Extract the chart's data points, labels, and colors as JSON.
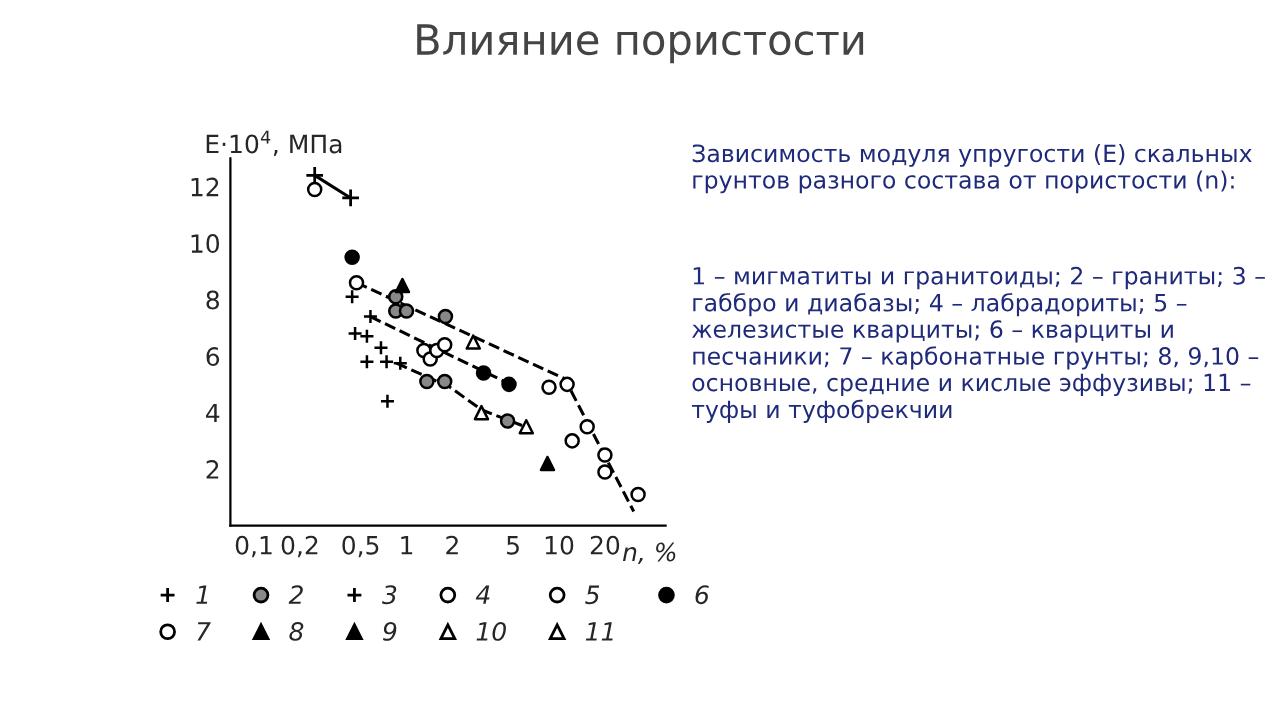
{
  "chart_data": {
    "type": "scatter",
    "title": "Влияние пористости",
    "xlabel": "n, %",
    "ylabel": "E·10$^{4}$, МПа",
    "annotations": [
      "Зависимость модуля упругости (E) скальных грунтов разного состава от пористости (n):",
      "1 – мигматиты и гранитоиды; 2 – граниты; 3 – габбро и диабазы; 4 – лабрадориты; 5 – железистые кварциты; 6 – кварциты и песчаники; 7 – карбонатные грунты; 8, 9,10 – основные, средние и кислые эффузивы; 11 – туфы и туфобрекчии"
    ],
    "log": "x",
    "xlim": [
      0.07,
      50
    ],
    "ylim": [
      0,
      13
    ],
    "xticks": [
      {
        "value": 0.1,
        "label": "0,1"
      },
      {
        "value": 0.2,
        "label": "0,2"
      },
      {
        "value": 0.5,
        "label": "0,5"
      },
      1,
      2,
      5,
      10,
      20
    ],
    "yticks": [
      2,
      4,
      6,
      8,
      10,
      12
    ],
    "grid": false,
    "legend": "bottom",
    "series": [
      {
        "name": "1",
        "color": "#000000",
        "marker": "cross",
        "x": [
          0.44,
          0.58,
          0.46,
          0.55,
          0.68,
          0.55,
          0.74,
          0.91,
          0.75
        ],
        "values": [
          8.1,
          7.4,
          6.8,
          6.7,
          6.3,
          5.8,
          5.8,
          5.75,
          4.4
        ]
      },
      {
        "name": "2",
        "color": "#888888",
        "marker": "circle",
        "x": [
          0.85,
          0.85,
          1.0,
          1.8,
          1.36,
          1.78,
          4.6
        ],
        "values": [
          8.1,
          7.6,
          7.6,
          7.4,
          5.1,
          5.1,
          3.7
        ]
      },
      {
        "name": "3",
        "type": "line",
        "color": "#000000",
        "marker": "cross",
        "line_style": "solid",
        "x": [
          0.25,
          0.43
        ],
        "values": [
          12.4,
          11.6
        ]
      },
      {
        "name": "4",
        "color": "#ffffff",
        "marker": "circle",
        "x": [
          1.3,
          1.43,
          1.58,
          1.78
        ],
        "values": [
          6.2,
          5.9,
          6.2,
          6.4
        ]
      },
      {
        "name": "5",
        "color": "#ffffff",
        "marker": "circle",
        "x": [
          0.25
        ],
        "values": [
          11.9
        ]
      },
      {
        "name": "6",
        "color": "#000000",
        "marker": "circle",
        "x": [
          0.44,
          3.2,
          4.7
        ],
        "values": [
          9.5,
          5.4,
          5.0
        ]
      },
      {
        "name": "7",
        "color": "#ffffff",
        "marker": "circle",
        "x": [
          0.47,
          8.6,
          11.3,
          12.2,
          15.3,
          20,
          20,
          33
        ],
        "values": [
          8.6,
          4.9,
          5.0,
          3.0,
          3.5,
          2.5,
          1.9,
          1.1
        ]
      },
      {
        "name": "8",
        "color": "#000000",
        "marker": "triangle",
        "x": [
          0.94
        ],
        "values": [
          8.5
        ]
      },
      {
        "name": "9",
        "color": "#000000",
        "marker": "triangle",
        "x": [
          8.4
        ],
        "values": [
          2.2
        ]
      },
      {
        "name": "10",
        "color": "#ffffff",
        "marker": "triangle",
        "x": [
          3.1,
          6.1
        ],
        "values": [
          4.0,
          3.5
        ]
      },
      {
        "name": "11",
        "color": "#ffffff",
        "marker": "triangle",
        "x": [
          2.74
        ],
        "values": [
          6.5
        ]
      },
      {
        "type": "line",
        "color": "#000000",
        "marker": "none",
        "line_style": "dashed",
        "x": [
          0.47,
          10.9,
          30.9
        ],
        "values": [
          8.6,
          5.2,
          0.5
        ]
      },
      {
        "type": "line",
        "color": "#000000",
        "marker": "none",
        "line_style": "dashed",
        "x": [
          0.58,
          4.8
        ],
        "values": [
          7.4,
          5.0
        ]
      },
      {
        "type": "line",
        "color": "#000000",
        "marker": "none",
        "line_style": "dashed",
        "x": [
          0.86,
          1.93,
          3.1,
          6.0
        ],
        "values": [
          5.75,
          4.9,
          4.1,
          3.5
        ]
      }
    ]
  }
}
